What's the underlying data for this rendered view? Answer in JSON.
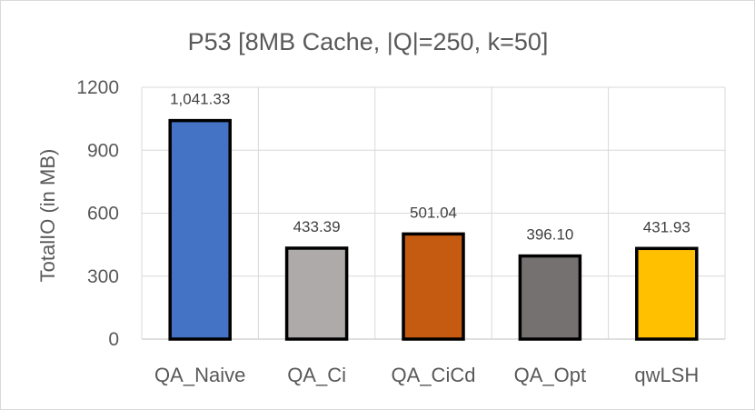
{
  "chart_data": {
    "type": "bar",
    "title": "P53 [8MB Cache, |Q|=250, k=50]",
    "xlabel": "",
    "ylabel": "TotalIO (in MB)",
    "ylim": [
      0,
      1200
    ],
    "yticks": [
      0,
      300,
      600,
      900,
      1200
    ],
    "categories": [
      "QA_Naive",
      "QA_Ci",
      "QA_CiCd",
      "QA_Opt",
      "qwLSH"
    ],
    "values": [
      1041.33,
      433.39,
      501.04,
      396.1,
      431.93
    ],
    "data_labels": [
      "1,041.33",
      "433.39",
      "501.04",
      "396.10",
      "431.93"
    ],
    "colors": [
      "#4472c4",
      "#aeaaaa",
      "#c55a11",
      "#767171",
      "#ffc000"
    ],
    "bar_outline": "#000000",
    "grid": true,
    "legend": "none"
  }
}
